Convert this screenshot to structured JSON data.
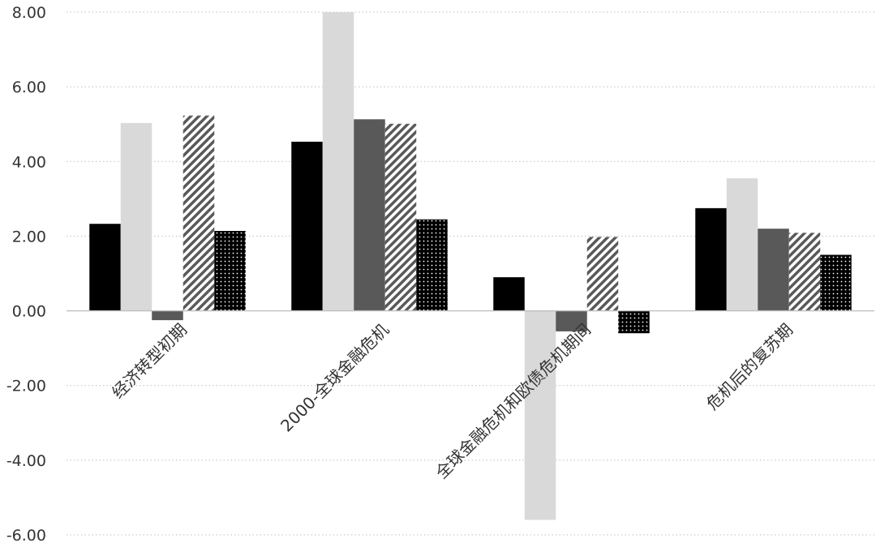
{
  "chart_data": {
    "type": "bar",
    "title": "",
    "xlabel": "",
    "ylabel": "",
    "ylim": [
      -6,
      8
    ],
    "yticks": [
      "8.00",
      "6.00",
      "4.00",
      "2.00",
      "0.00",
      "-2.00",
      "-4.00",
      "-6.00"
    ],
    "grid": true,
    "legend": "none",
    "categories": [
      "经济转型初期",
      "2000-全球金融危机",
      "全球金融危机和欧债危机期间",
      "危机后的复苏期"
    ],
    "series": [
      {
        "fill": "solid-black",
        "color": "#000000",
        "values": [
          2.33,
          4.53,
          0.9,
          2.75
        ]
      },
      {
        "fill": "solid-light-gray",
        "color": "#d9d9d9",
        "values": [
          5.03,
          8.0,
          -5.6,
          3.55
        ]
      },
      {
        "fill": "solid-dark-gray",
        "color": "#595959",
        "values": [
          -0.25,
          5.13,
          -0.55,
          2.2
        ]
      },
      {
        "fill": "diagonal-hatch",
        "color": "#595959",
        "values": [
          5.23,
          5.01,
          1.98,
          2.09
        ]
      },
      {
        "fill": "dotted-black",
        "color": "#000000",
        "values": [
          2.14,
          2.45,
          -0.6,
          1.5
        ]
      }
    ]
  }
}
